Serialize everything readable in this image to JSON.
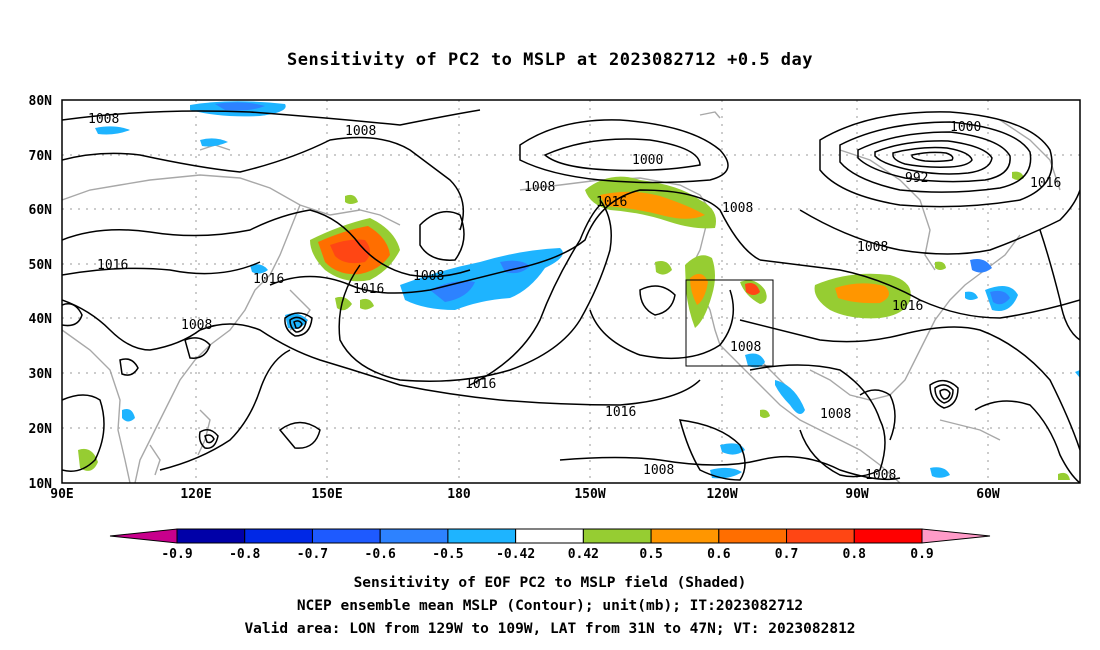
{
  "title": "Sensitivity of PC2 to MSLP at 2023082712 +0.5 day",
  "lat_labels": [
    "80N",
    "70N",
    "60N",
    "50N",
    "40N",
    "30N",
    "20N",
    "10N"
  ],
  "lon_labels": [
    "90E",
    "120E",
    "150E",
    "180",
    "150W",
    "120W",
    "90W",
    "60W"
  ],
  "contour_labels": {
    "c1": "1008",
    "c2": "1008",
    "c3": "1000",
    "c4": "1000",
    "c5": "992",
    "c6": "1016",
    "c7": "1008",
    "c8": "1016",
    "c9": "1008",
    "c10": "1016",
    "c11": "1016",
    "c12": "1008",
    "c13": "1016",
    "c14": "1008",
    "c15": "1016",
    "c16": "1008",
    "c17": "1016",
    "c18": "1016",
    "c19": "1008",
    "c20": "1008",
    "c21": "1008",
    "c22": "1008"
  },
  "colorbar": {
    "labels": [
      "-0.9",
      "-0.8",
      "-0.7",
      "-0.6",
      "-0.5",
      "-0.42",
      "0.42",
      "0.5",
      "0.6",
      "0.7",
      "0.8",
      "0.9"
    ],
    "colors": [
      "#0000a8",
      "#0028e6",
      "#1e5aff",
      "#2d82ff",
      "#1eb4ff",
      "#ffffff",
      "#96cd32",
      "#ff9600",
      "#ff6e00",
      "#ff4614",
      "#ff0000"
    ],
    "low_end_color": "#c8008c",
    "high_end_color": "#ff9bc8"
  },
  "caption": {
    "line1": "Sensitivity of EOF PC2 to MSLP field (Shaded)",
    "line2": "NCEP ensemble mean MSLP (Contour); unit(mb); IT:2023082712",
    "line3": "Valid area: LON from 129W to 109W, LAT from 31N to 47N; VT: 2023082812"
  }
}
